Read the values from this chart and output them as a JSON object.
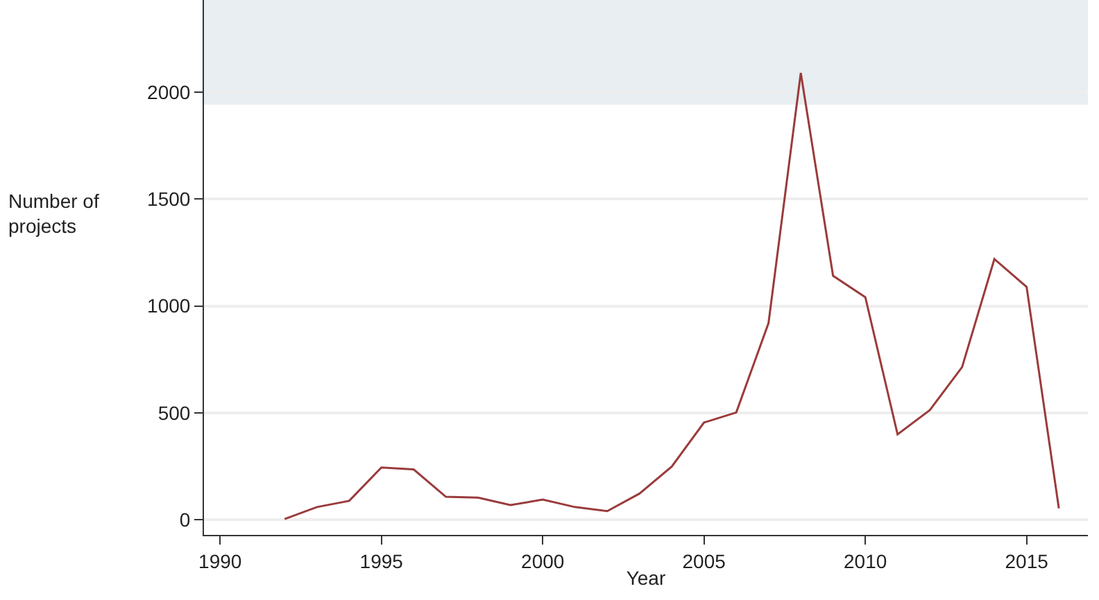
{
  "chart_data": {
    "type": "line",
    "xlabel": "Year",
    "ylabel": "Number of projects",
    "x": [
      1992,
      1993,
      1994,
      1995,
      1996,
      1997,
      1998,
      1999,
      2000,
      2001,
      2002,
      2003,
      2004,
      2005,
      2006,
      2007,
      2008,
      2009,
      2010,
      2011,
      2012,
      2013,
      2014,
      2015,
      2016
    ],
    "series": [
      {
        "color": "#9b3b3b",
        "values": [
          4,
          60,
          89,
          245,
          236,
          108,
          104,
          69,
          95,
          60,
          41,
          123,
          249,
          455,
          502,
          920,
          2089,
          1141,
          1041,
          400,
          513,
          714,
          1219,
          1089,
          54
        ]
      }
    ],
    "xlim": [
      1989.5,
      2016.9
    ],
    "xticks": [
      1990,
      1995,
      2000,
      2005,
      2010,
      2015
    ],
    "ylim": [
      -70,
      2430
    ],
    "yticks": [
      0,
      500,
      1000,
      1500,
      2000
    ],
    "bands": [
      {
        "axis": "y",
        "from": 1940,
        "to": 2430,
        "color": "#e8eef2"
      }
    ],
    "grid": "y",
    "marker": "none",
    "line_style": "solid"
  }
}
